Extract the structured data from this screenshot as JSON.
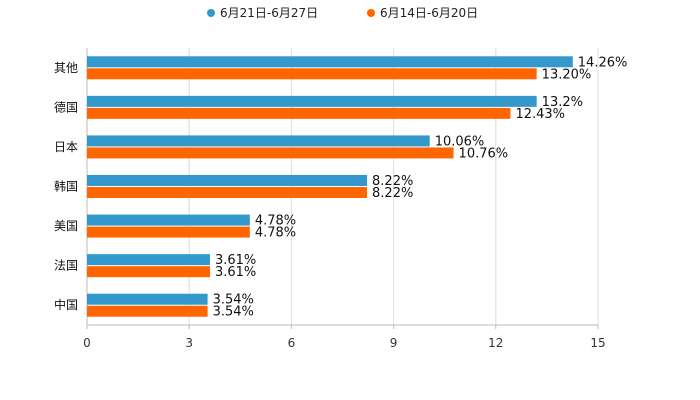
{
  "chart_data": {
    "type": "bar",
    "orientation": "horizontal",
    "title": "",
    "xlabel": "",
    "ylabel": "",
    "xlim": [
      0,
      15
    ],
    "xticks": [
      0,
      3,
      6,
      9,
      12,
      15
    ],
    "grid": true,
    "legend_position": "top-center",
    "categories": [
      "其他",
      "德国",
      "日本",
      "韩国",
      "美国",
      "法国",
      "中国"
    ],
    "series": [
      {
        "name": "6月21日-6月27日",
        "color": "#3399cc",
        "values": [
          14.26,
          13.2,
          10.06,
          8.22,
          4.78,
          3.61,
          3.54
        ],
        "labels": [
          "14.26%",
          "13.2%",
          "10.06%",
          "8.22%",
          "4.78%",
          "3.61%",
          "3.54%"
        ]
      },
      {
        "name": "6月14日-6月20日",
        "color": "#ff6600",
        "values": [
          13.2,
          12.43,
          10.76,
          8.22,
          4.78,
          3.61,
          3.54
        ],
        "labels": [
          "13.20%",
          "12.43%",
          "10.76%",
          "8.22%",
          "4.78%",
          "3.61%",
          "3.54%"
        ]
      }
    ]
  }
}
